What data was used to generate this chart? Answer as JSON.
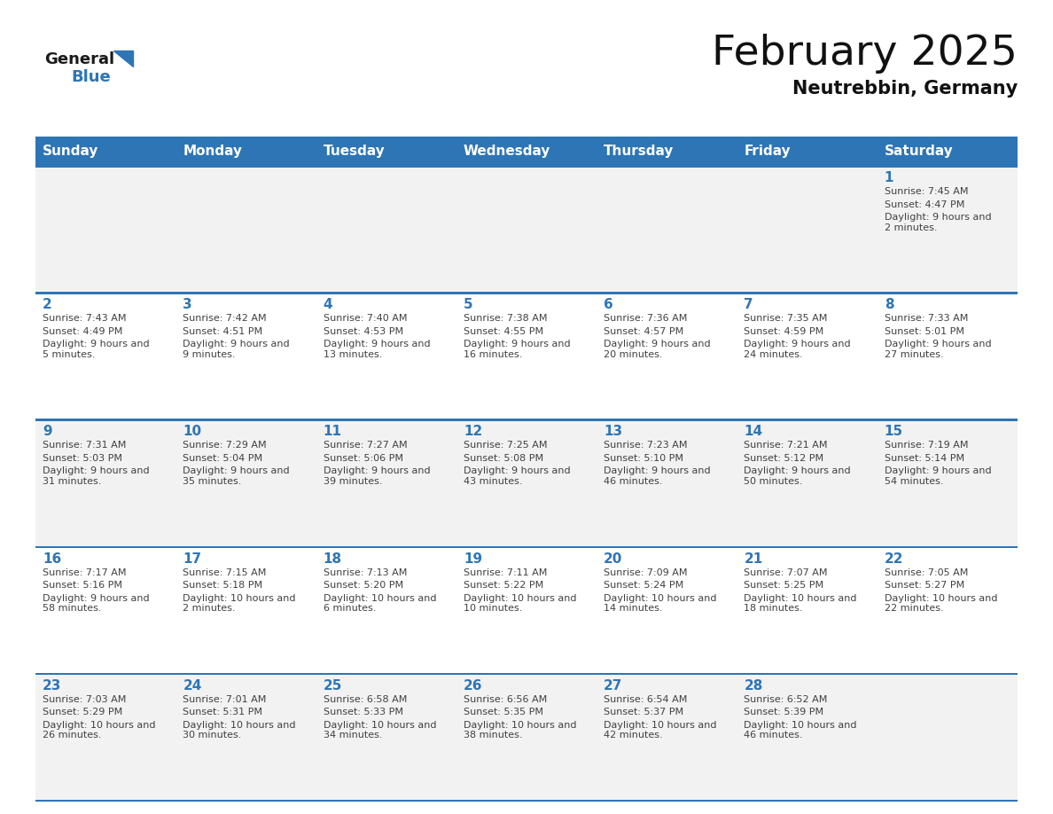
{
  "title": "February 2025",
  "subtitle": "Neutrebbin, Germany",
  "header_color": "#2e75b6",
  "header_text_color": "#ffffff",
  "days_of_week": [
    "Sunday",
    "Monday",
    "Tuesday",
    "Wednesday",
    "Thursday",
    "Friday",
    "Saturday"
  ],
  "background_color": "#ffffff",
  "cell_bg_light": "#f2f2f2",
  "cell_bg_white": "#ffffff",
  "day_num_color": "#2e75b6",
  "text_color": "#404040",
  "separator_color": "#2e75b6",
  "logo_general_color": "#1a1a1a",
  "logo_blue_color": "#2e75b6",
  "calendar_data": [
    [
      null,
      null,
      null,
      null,
      null,
      null,
      {
        "day": 1,
        "sunrise": "7:45 AM",
        "sunset": "4:47 PM",
        "daylight": "9 hours and\n2 minutes."
      }
    ],
    [
      {
        "day": 2,
        "sunrise": "7:43 AM",
        "sunset": "4:49 PM",
        "daylight": "9 hours and\n5 minutes."
      },
      {
        "day": 3,
        "sunrise": "7:42 AM",
        "sunset": "4:51 PM",
        "daylight": "9 hours and\n9 minutes."
      },
      {
        "day": 4,
        "sunrise": "7:40 AM",
        "sunset": "4:53 PM",
        "daylight": "9 hours and\n13 minutes."
      },
      {
        "day": 5,
        "sunrise": "7:38 AM",
        "sunset": "4:55 PM",
        "daylight": "9 hours and\n16 minutes."
      },
      {
        "day": 6,
        "sunrise": "7:36 AM",
        "sunset": "4:57 PM",
        "daylight": "9 hours and\n20 minutes."
      },
      {
        "day": 7,
        "sunrise": "7:35 AM",
        "sunset": "4:59 PM",
        "daylight": "9 hours and\n24 minutes."
      },
      {
        "day": 8,
        "sunrise": "7:33 AM",
        "sunset": "5:01 PM",
        "daylight": "9 hours and\n27 minutes."
      }
    ],
    [
      {
        "day": 9,
        "sunrise": "7:31 AM",
        "sunset": "5:03 PM",
        "daylight": "9 hours and\n31 minutes."
      },
      {
        "day": 10,
        "sunrise": "7:29 AM",
        "sunset": "5:04 PM",
        "daylight": "9 hours and\n35 minutes."
      },
      {
        "day": 11,
        "sunrise": "7:27 AM",
        "sunset": "5:06 PM",
        "daylight": "9 hours and\n39 minutes."
      },
      {
        "day": 12,
        "sunrise": "7:25 AM",
        "sunset": "5:08 PM",
        "daylight": "9 hours and\n43 minutes."
      },
      {
        "day": 13,
        "sunrise": "7:23 AM",
        "sunset": "5:10 PM",
        "daylight": "9 hours and\n46 minutes."
      },
      {
        "day": 14,
        "sunrise": "7:21 AM",
        "sunset": "5:12 PM",
        "daylight": "9 hours and\n50 minutes."
      },
      {
        "day": 15,
        "sunrise": "7:19 AM",
        "sunset": "5:14 PM",
        "daylight": "9 hours and\n54 minutes."
      }
    ],
    [
      {
        "day": 16,
        "sunrise": "7:17 AM",
        "sunset": "5:16 PM",
        "daylight": "9 hours and\n58 minutes."
      },
      {
        "day": 17,
        "sunrise": "7:15 AM",
        "sunset": "5:18 PM",
        "daylight": "10 hours and\n2 minutes."
      },
      {
        "day": 18,
        "sunrise": "7:13 AM",
        "sunset": "5:20 PM",
        "daylight": "10 hours and\n6 minutes."
      },
      {
        "day": 19,
        "sunrise": "7:11 AM",
        "sunset": "5:22 PM",
        "daylight": "10 hours and\n10 minutes."
      },
      {
        "day": 20,
        "sunrise": "7:09 AM",
        "sunset": "5:24 PM",
        "daylight": "10 hours and\n14 minutes."
      },
      {
        "day": 21,
        "sunrise": "7:07 AM",
        "sunset": "5:25 PM",
        "daylight": "10 hours and\n18 minutes."
      },
      {
        "day": 22,
        "sunrise": "7:05 AM",
        "sunset": "5:27 PM",
        "daylight": "10 hours and\n22 minutes."
      }
    ],
    [
      {
        "day": 23,
        "sunrise": "7:03 AM",
        "sunset": "5:29 PM",
        "daylight": "10 hours and\n26 minutes."
      },
      {
        "day": 24,
        "sunrise": "7:01 AM",
        "sunset": "5:31 PM",
        "daylight": "10 hours and\n30 minutes."
      },
      {
        "day": 25,
        "sunrise": "6:58 AM",
        "sunset": "5:33 PM",
        "daylight": "10 hours and\n34 minutes."
      },
      {
        "day": 26,
        "sunrise": "6:56 AM",
        "sunset": "5:35 PM",
        "daylight": "10 hours and\n38 minutes."
      },
      {
        "day": 27,
        "sunrise": "6:54 AM",
        "sunset": "5:37 PM",
        "daylight": "10 hours and\n42 minutes."
      },
      {
        "day": 28,
        "sunrise": "6:52 AM",
        "sunset": "5:39 PM",
        "daylight": "10 hours and\n46 minutes."
      },
      null
    ]
  ]
}
